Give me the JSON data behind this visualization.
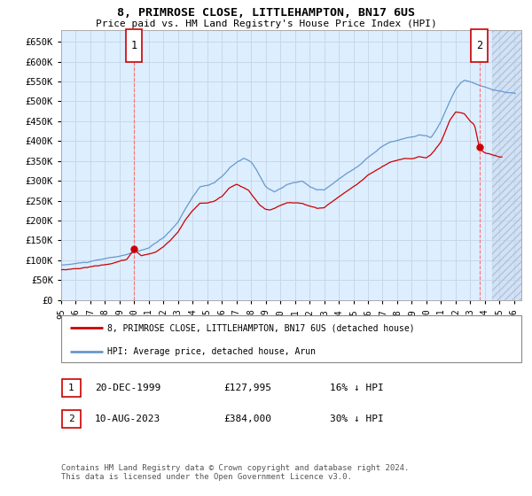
{
  "title": "8, PRIMROSE CLOSE, LITTLEHAMPTON, BN17 6US",
  "subtitle": "Price paid vs. HM Land Registry's House Price Index (HPI)",
  "ylabel_ticks": [
    0,
    50000,
    100000,
    150000,
    200000,
    250000,
    300000,
    350000,
    400000,
    450000,
    500000,
    550000,
    600000,
    650000
  ],
  "ylim": [
    0,
    680000
  ],
  "xlim_start": 1995.0,
  "xlim_end": 2026.5,
  "sale1_date_num": 2000.0,
  "sale1_price": 127995,
  "sale1_label": "1",
  "sale1_date_str": "20-DEC-1999",
  "sale1_price_str": "£127,995",
  "sale1_hpi_str": "16% ↓ HPI",
  "sale2_date_num": 2023.62,
  "sale2_price": 384000,
  "sale2_label": "2",
  "sale2_date_str": "10-AUG-2023",
  "sale2_price_str": "£384,000",
  "sale2_hpi_str": "30% ↓ HPI",
  "legend_property": "8, PRIMROSE CLOSE, LITTLEHAMPTON, BN17 6US (detached house)",
  "legend_hpi": "HPI: Average price, detached house, Arun",
  "footer": "Contains HM Land Registry data © Crown copyright and database right 2024.\nThis data is licensed under the Open Government Licence v3.0.",
  "sale_color": "#cc0000",
  "hpi_color": "#6699cc",
  "bg_color": "#ddeeff",
  "grid_color": "#c8d8e8"
}
